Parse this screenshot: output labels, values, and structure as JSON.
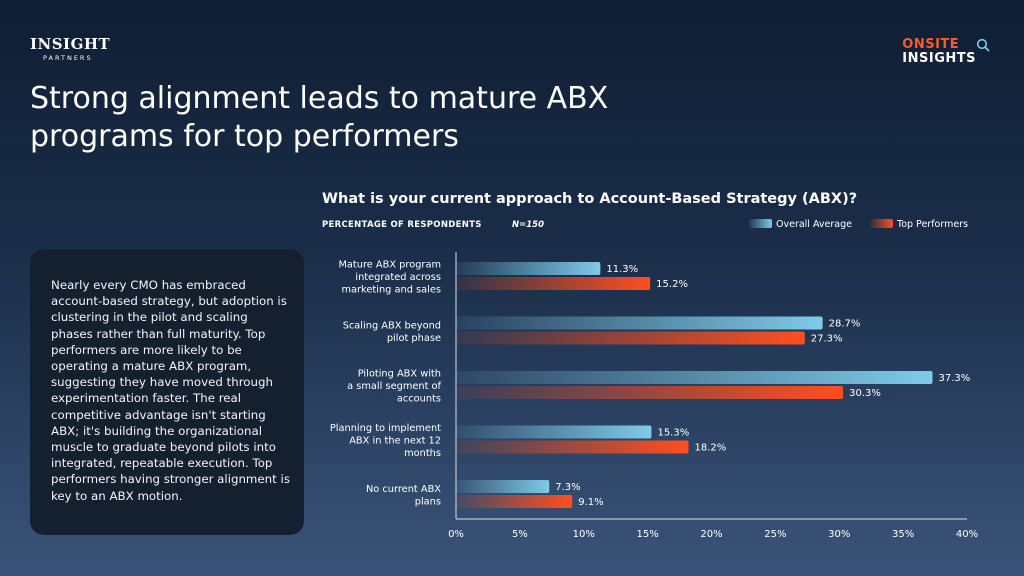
{
  "logos": {
    "insight_main": "INSIGHT",
    "insight_sub": "PARTNERS",
    "onsite_line1": "ONSITE",
    "onsite_line2": "INSIGHTS"
  },
  "title": "Strong alignment leads to mature ABX programs for top performers",
  "body_text": "Nearly every CMO has embraced account-based strategy, but adoption is clustering in the pilot and scaling phases rather than full maturity. Top performers are more likely to be operating a mature ABX program, suggesting they have moved through experimentation faster. The real competitive advantage isn't starting ABX; it's building the organizational muscle to graduate beyond pilots into integrated, repeatable execution. Top performers having stronger alignment is key to an ABX motion.",
  "colors": {
    "overall": "#7ecbe8",
    "top": "#ff4f1f",
    "axis": "#d8dee8"
  },
  "chart_data": {
    "type": "bar",
    "orientation": "horizontal",
    "title": "What is your current approach to Account-Based Strategy (ABX)?",
    "subtitle": "PERCENTAGE OF RESPONDENTS",
    "sample_size": "N=150",
    "categories": [
      [
        "Mature ABX program",
        "integrated across",
        "marketing and sales"
      ],
      [
        "Scaling ABX beyond",
        "pilot phase"
      ],
      [
        "Piloting ABX with",
        "a small segment of",
        "accounts"
      ],
      [
        "Planning to implement",
        "ABX in the next 12",
        "months"
      ],
      [
        "No current ABX",
        "plans"
      ]
    ],
    "series": [
      {
        "name": "Overall Average",
        "values": [
          11.3,
          28.7,
          37.3,
          15.3,
          7.3
        ],
        "labels": [
          "11.3%",
          "28.7%",
          "37.3%",
          "15.3%",
          "7.3%"
        ]
      },
      {
        "name": "Top Performers",
        "values": [
          15.2,
          27.3,
          30.3,
          18.2,
          9.1
        ],
        "labels": [
          "15.2%",
          "27.3%",
          "30.3%",
          "18.2%",
          "9.1%"
        ]
      }
    ],
    "xlim": [
      0,
      40
    ],
    "xticks": [
      0,
      5,
      10,
      15,
      20,
      25,
      30,
      35,
      40
    ],
    "xtick_labels": [
      "0%",
      "5%",
      "10%",
      "15%",
      "20%",
      "25%",
      "30%",
      "35%",
      "40%"
    ],
    "legend_position": "top-right",
    "grid": false
  }
}
